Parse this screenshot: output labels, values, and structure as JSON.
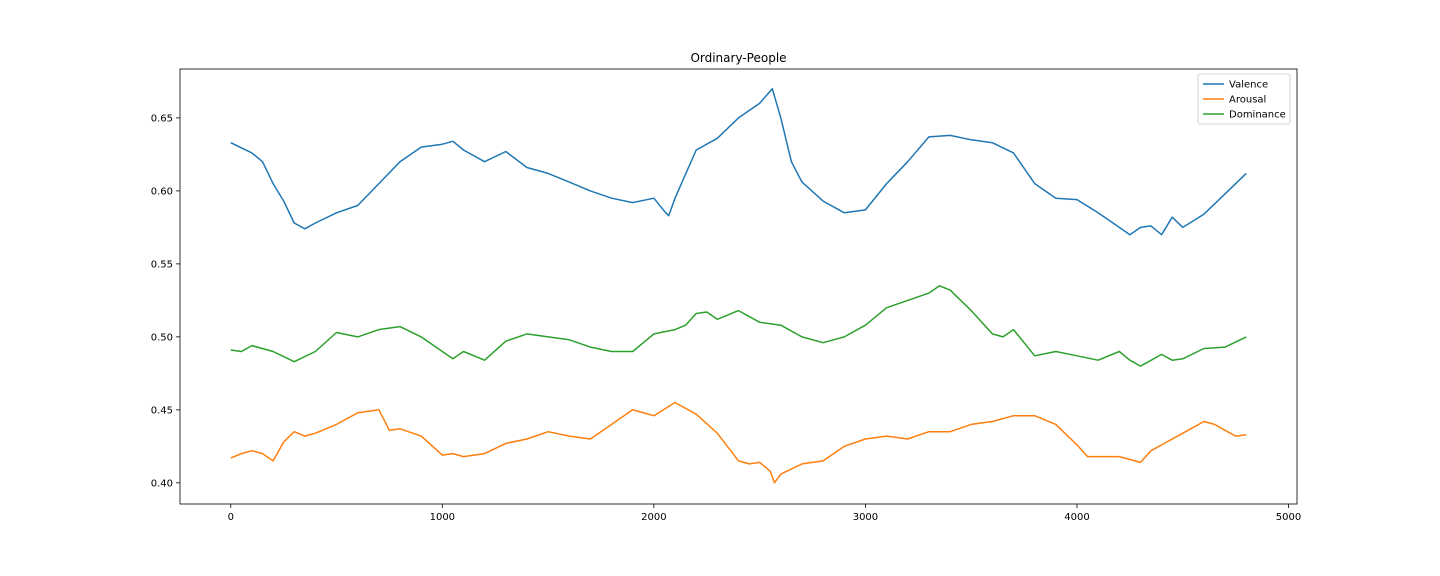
{
  "chart_data": {
    "type": "line",
    "title": "Ordinary-People",
    "xlabel": "",
    "ylabel": "",
    "xlim": [
      -240,
      5040
    ],
    "ylim": [
      0.3855,
      0.6835
    ],
    "xticks": [
      0,
      1000,
      2000,
      3000,
      4000,
      5000
    ],
    "xtick_labels": [
      "0",
      "1000",
      "2000",
      "3000",
      "4000",
      "5000"
    ],
    "yticks": [
      0.4,
      0.45,
      0.5,
      0.55,
      0.6,
      0.65
    ],
    "ytick_labels": [
      "0.40",
      "0.45",
      "0.50",
      "0.55",
      "0.60",
      "0.65"
    ],
    "legend_position": "top-right",
    "grid": false,
    "series": [
      {
        "name": "Valence",
        "color": "#1f77b4",
        "x": [
          0,
          100,
          150,
          200,
          250,
          300,
          350,
          400,
          500,
          600,
          700,
          800,
          900,
          1000,
          1050,
          1100,
          1200,
          1300,
          1400,
          1500,
          1600,
          1700,
          1800,
          1900,
          2000,
          2050,
          2070,
          2100,
          2200,
          2300,
          2400,
          2500,
          2560,
          2600,
          2650,
          2700,
          2800,
          2900,
          3000,
          3100,
          3200,
          3300,
          3400,
          3500,
          3600,
          3700,
          3800,
          3900,
          4000,
          4100,
          4200,
          4250,
          4300,
          4350,
          4400,
          4450,
          4500,
          4600,
          4700,
          4800
        ],
        "values": [
          0.633,
          0.626,
          0.62,
          0.605,
          0.593,
          0.578,
          0.574,
          0.578,
          0.585,
          0.59,
          0.605,
          0.62,
          0.63,
          0.632,
          0.634,
          0.628,
          0.62,
          0.627,
          0.616,
          0.612,
          0.606,
          0.6,
          0.595,
          0.592,
          0.595,
          0.586,
          0.583,
          0.595,
          0.628,
          0.636,
          0.65,
          0.66,
          0.67,
          0.65,
          0.62,
          0.606,
          0.593,
          0.585,
          0.587,
          0.605,
          0.62,
          0.637,
          0.638,
          0.635,
          0.633,
          0.626,
          0.605,
          0.595,
          0.594,
          0.585,
          0.575,
          0.57,
          0.575,
          0.576,
          0.57,
          0.582,
          0.575,
          0.584,
          0.598,
          0.612
        ]
      },
      {
        "name": "Arousal",
        "color": "#ff7f0e",
        "x": [
          0,
          50,
          100,
          150,
          200,
          250,
          300,
          350,
          400,
          500,
          600,
          700,
          750,
          800,
          900,
          1000,
          1050,
          1100,
          1200,
          1300,
          1400,
          1500,
          1600,
          1700,
          1800,
          1900,
          2000,
          2100,
          2150,
          2200,
          2300,
          2400,
          2450,
          2500,
          2550,
          2570,
          2600,
          2700,
          2800,
          2900,
          3000,
          3100,
          3200,
          3300,
          3400,
          3500,
          3600,
          3700,
          3800,
          3900,
          4000,
          4050,
          4100,
          4200,
          4250,
          4300,
          4350,
          4400,
          4500,
          4600,
          4650,
          4700,
          4750,
          4800
        ],
        "values": [
          0.417,
          0.42,
          0.422,
          0.42,
          0.415,
          0.428,
          0.435,
          0.432,
          0.434,
          0.44,
          0.448,
          0.45,
          0.436,
          0.437,
          0.432,
          0.419,
          0.42,
          0.418,
          0.42,
          0.427,
          0.43,
          0.435,
          0.432,
          0.43,
          0.44,
          0.45,
          0.446,
          0.455,
          0.451,
          0.447,
          0.434,
          0.415,
          0.413,
          0.414,
          0.408,
          0.4,
          0.406,
          0.413,
          0.415,
          0.425,
          0.43,
          0.432,
          0.43,
          0.435,
          0.435,
          0.44,
          0.442,
          0.446,
          0.446,
          0.44,
          0.426,
          0.418,
          0.418,
          0.418,
          0.416,
          0.414,
          0.422,
          0.426,
          0.434,
          0.442,
          0.44,
          0.436,
          0.432,
          0.433
        ]
      },
      {
        "name": "Dominance",
        "color": "#2ca02c",
        "x": [
          0,
          50,
          100,
          200,
          300,
          400,
          500,
          600,
          700,
          800,
          900,
          1000,
          1050,
          1100,
          1200,
          1300,
          1400,
          1500,
          1600,
          1700,
          1800,
          1900,
          2000,
          2100,
          2150,
          2200,
          2250,
          2300,
          2400,
          2500,
          2600,
          2700,
          2800,
          2900,
          3000,
          3100,
          3200,
          3300,
          3350,
          3400,
          3500,
          3600,
          3650,
          3700,
          3800,
          3900,
          4000,
          4100,
          4200,
          4250,
          4300,
          4400,
          4450,
          4500,
          4600,
          4700,
          4800
        ],
        "values": [
          0.491,
          0.49,
          0.494,
          0.49,
          0.483,
          0.49,
          0.503,
          0.5,
          0.505,
          0.507,
          0.5,
          0.49,
          0.485,
          0.49,
          0.484,
          0.497,
          0.502,
          0.5,
          0.498,
          0.493,
          0.49,
          0.49,
          0.502,
          0.505,
          0.508,
          0.516,
          0.517,
          0.512,
          0.518,
          0.51,
          0.508,
          0.5,
          0.496,
          0.5,
          0.508,
          0.52,
          0.525,
          0.53,
          0.535,
          0.532,
          0.518,
          0.502,
          0.5,
          0.505,
          0.487,
          0.49,
          0.487,
          0.484,
          0.49,
          0.484,
          0.48,
          0.488,
          0.484,
          0.485,
          0.492,
          0.493,
          0.5
        ]
      }
    ]
  }
}
